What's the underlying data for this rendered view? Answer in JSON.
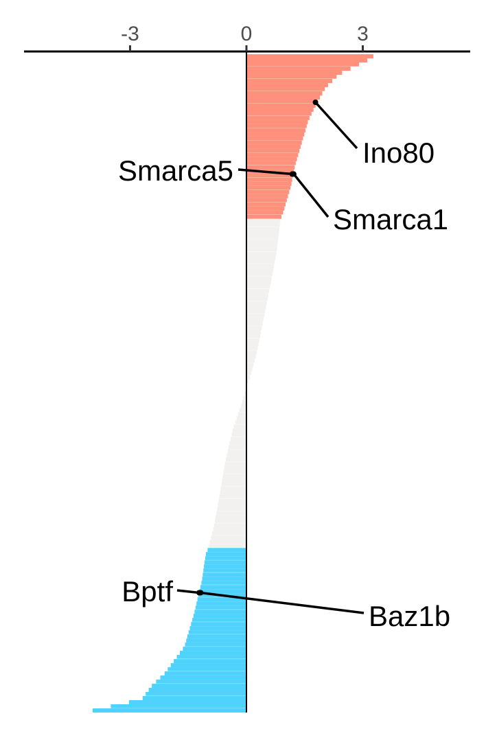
{
  "chart_data": {
    "type": "bar",
    "orientation": "horizontal",
    "title": "",
    "xlabel": "",
    "ylabel": "",
    "xlim": [
      -5.8,
      5.7
    ],
    "x_axis_position": "top",
    "grid": false,
    "legend": "none",
    "x_ticks": [
      {
        "value": -3,
        "label": "-3"
      },
      {
        "value": 0,
        "label": "0"
      },
      {
        "value": 3,
        "label": "3"
      }
    ],
    "colors": {
      "up": "#FF907C",
      "neutral": "#F2F1EF",
      "down": "#4FD2FC",
      "separator": "#ffffff",
      "axis": "#000000"
    },
    "thresholds": {
      "up_min": 0.9,
      "down_max": -1.0
    },
    "profile": [
      {
        "rank": 0.0,
        "value": 3.35
      },
      {
        "rank": 0.01,
        "value": 3.1
      },
      {
        "rank": 0.03,
        "value": 2.4
      },
      {
        "rank": 0.05,
        "value": 2.05
      },
      {
        "rank": 0.07,
        "value": 1.85
      },
      {
        "rank": 0.1,
        "value": 1.6
      },
      {
        "rank": 0.13,
        "value": 1.45
      },
      {
        "rank": 0.17,
        "value": 1.25
      },
      {
        "rank": 0.2,
        "value": 1.15
      },
      {
        "rank": 0.24,
        "value": 0.95
      },
      {
        "rank": 0.25,
        "value": 0.88
      },
      {
        "rank": 0.3,
        "value": 0.78
      },
      {
        "rank": 0.35,
        "value": 0.62
      },
      {
        "rank": 0.4,
        "value": 0.45
      },
      {
        "rank": 0.45,
        "value": 0.28
      },
      {
        "rank": 0.49,
        "value": 0.1
      },
      {
        "rank": 0.5,
        "value": 0.02
      },
      {
        "rank": 0.51,
        "value": -0.02
      },
      {
        "rank": 0.53,
        "value": -0.12
      },
      {
        "rank": 0.57,
        "value": -0.35
      },
      {
        "rank": 0.62,
        "value": -0.55
      },
      {
        "rank": 0.68,
        "value": -0.72
      },
      {
        "rank": 0.72,
        "value": -0.85
      },
      {
        "rank": 0.75,
        "value": -0.98
      },
      {
        "rank": 0.76,
        "value": -1.05
      },
      {
        "rank": 0.8,
        "value": -1.15
      },
      {
        "rank": 0.85,
        "value": -1.35
      },
      {
        "rank": 0.9,
        "value": -1.6
      },
      {
        "rank": 0.94,
        "value": -2.1
      },
      {
        "rank": 0.96,
        "value": -2.45
      },
      {
        "rank": 0.98,
        "value": -2.7
      },
      {
        "rank": 1.0,
        "value": -4.2
      }
    ],
    "bar_count": 160,
    "highlighted": [
      {
        "name": "Ino80",
        "value": 1.78,
        "rank": 0.073
      },
      {
        "name": "Smarca5",
        "value": 1.18,
        "rank": 0.182
      },
      {
        "name": "Smarca1",
        "value": 1.22,
        "rank": 0.182
      },
      {
        "name": "Bptf",
        "value": -1.22,
        "rank": 0.818
      },
      {
        "name": "Baz1b",
        "value": -1.18,
        "rank": 0.818
      }
    ]
  }
}
